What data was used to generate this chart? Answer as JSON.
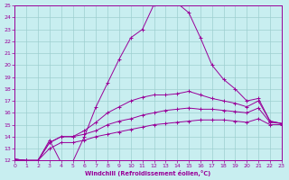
{
  "xlabel": "Windchill (Refroidissement éolien,°C)",
  "xlim": [
    0,
    23
  ],
  "ylim": [
    12,
    25
  ],
  "yticks": [
    12,
    13,
    14,
    15,
    16,
    17,
    18,
    19,
    20,
    21,
    22,
    23,
    24,
    25
  ],
  "xticks": [
    0,
    1,
    2,
    3,
    4,
    5,
    6,
    7,
    8,
    9,
    10,
    11,
    12,
    13,
    14,
    15,
    16,
    17,
    18,
    19,
    20,
    21,
    22,
    23
  ],
  "bg_color": "#c8eef0",
  "line_color": "#990099",
  "grid_color": "#9dcfcf",
  "series": [
    {
      "x": [
        0,
        1,
        2,
        3,
        4,
        5,
        6,
        7,
        8,
        9,
        10,
        11,
        12,
        13,
        14,
        15,
        16,
        17,
        18,
        19,
        20,
        21,
        22,
        23
      ],
      "y": [
        12.1,
        12.0,
        12.0,
        13.7,
        11.8,
        11.9,
        14.0,
        16.5,
        18.5,
        20.5,
        22.3,
        23.0,
        25.1,
        25.2,
        25.2,
        24.4,
        22.3,
        20.0,
        18.8,
        18.0,
        17.0,
        17.2,
        15.3,
        15.1
      ]
    },
    {
      "x": [
        0,
        1,
        2,
        3,
        4,
        5,
        6,
        7,
        8,
        9,
        10,
        11,
        12,
        13,
        14,
        15,
        16,
        17,
        18,
        19,
        20,
        21,
        22,
        23
      ],
      "y": [
        12.1,
        12.0,
        12.0,
        13.5,
        14.0,
        14.0,
        14.5,
        15.2,
        16.0,
        16.5,
        17.0,
        17.3,
        17.5,
        17.5,
        17.6,
        17.8,
        17.5,
        17.2,
        17.0,
        16.8,
        16.5,
        17.0,
        15.3,
        15.1
      ]
    },
    {
      "x": [
        0,
        1,
        2,
        3,
        4,
        5,
        6,
        7,
        8,
        9,
        10,
        11,
        12,
        13,
        14,
        15,
        16,
        17,
        18,
        19,
        20,
        21,
        22,
        23
      ],
      "y": [
        12.1,
        12.0,
        12.0,
        13.5,
        14.0,
        14.0,
        14.2,
        14.5,
        15.0,
        15.3,
        15.5,
        15.8,
        16.0,
        16.2,
        16.3,
        16.4,
        16.3,
        16.3,
        16.2,
        16.1,
        16.0,
        16.4,
        15.2,
        15.1
      ]
    },
    {
      "x": [
        0,
        1,
        2,
        3,
        4,
        5,
        6,
        7,
        8,
        9,
        10,
        11,
        12,
        13,
        14,
        15,
        16,
        17,
        18,
        19,
        20,
        21,
        22,
        23
      ],
      "y": [
        12.1,
        12.0,
        12.0,
        13.0,
        13.5,
        13.5,
        13.7,
        14.0,
        14.2,
        14.4,
        14.6,
        14.8,
        15.0,
        15.1,
        15.2,
        15.3,
        15.4,
        15.4,
        15.4,
        15.3,
        15.2,
        15.5,
        15.0,
        15.0
      ]
    }
  ]
}
